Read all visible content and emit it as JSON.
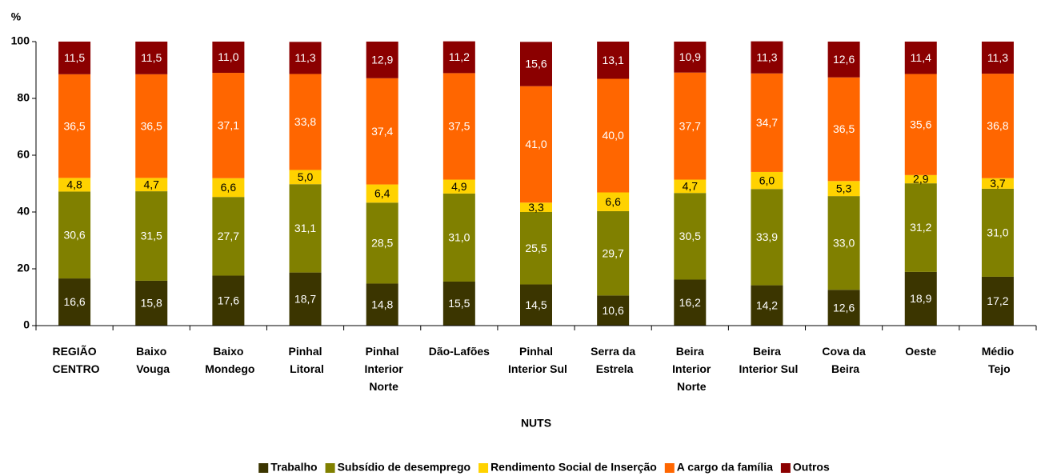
{
  "chart_data": {
    "type": "stacked_bar",
    "y_axis_label": "%",
    "x_axis_label": "NUTS",
    "categories": [
      "REGIÃO\nCENTRO",
      "Baixo\nVouga",
      "Baixo\nMondego",
      "Pinhal\nLitoral",
      "Pinhal\nInterior\nNorte",
      "Dão-Lafões",
      "Pinhal\nInterior Sul",
      "Serra da\nEstrela",
      "Beira\nInterior\nNorte",
      "Beira\nInterior Sul",
      "Cova da\nBeira",
      "Oeste",
      "Médio\nTejo"
    ],
    "series": [
      {
        "name": "Trabalho",
        "color": "#3b3500",
        "label_color": "#ffffff",
        "values": [
          16.6,
          15.8,
          17.6,
          18.7,
          14.8,
          15.5,
          14.5,
          10.6,
          16.2,
          14.2,
          12.6,
          18.9,
          17.2
        ],
        "value_labels": [
          "16,6",
          "15,8",
          "17,6",
          "18,7",
          "14,8",
          "15,5",
          "14,5",
          "10,6",
          "16,2",
          "14,2",
          "12,6",
          "18,9",
          "17,2"
        ]
      },
      {
        "name": "Subsídio de desemprego",
        "color": "#808000",
        "label_color": "#ffffff",
        "values": [
          30.6,
          31.5,
          27.7,
          31.1,
          28.5,
          31.0,
          25.5,
          29.7,
          30.5,
          33.9,
          33.0,
          31.2,
          31.0
        ],
        "value_labels": [
          "30,6",
          "31,5",
          "27,7",
          "31,1",
          "28,5",
          "31,0",
          "25,5",
          "29,7",
          "30,5",
          "33,9",
          "33,0",
          "31,2",
          "31,0"
        ]
      },
      {
        "name": "Rendimento Social de Inserção",
        "color": "#ffd200",
        "label_color": "#000000",
        "values": [
          4.8,
          4.7,
          6.6,
          5.0,
          6.4,
          4.9,
          3.3,
          6.6,
          4.7,
          6.0,
          5.3,
          2.9,
          3.7
        ],
        "value_labels": [
          "4,8",
          "4,7",
          "6,6",
          "5,0",
          "6,4",
          "4,9",
          "3,3",
          "6,6",
          "4,7",
          "6,0",
          "5,3",
          "2,9",
          "3,7"
        ]
      },
      {
        "name": "A cargo da família",
        "color": "#ff6600",
        "label_color": "#ffffff",
        "values": [
          36.5,
          36.5,
          37.1,
          33.8,
          37.4,
          37.5,
          41.0,
          40.0,
          37.7,
          34.7,
          36.5,
          35.6,
          36.8
        ],
        "value_labels": [
          "36,5",
          "36,5",
          "37,1",
          "33,8",
          "37,4",
          "37,5",
          "41,0",
          "40,0",
          "37,7",
          "34,7",
          "36,5",
          "35,6",
          "36,8"
        ]
      },
      {
        "name": "Outros",
        "color": "#8b0000",
        "label_color": "#ffffff",
        "values": [
          11.5,
          11.5,
          11.0,
          11.3,
          12.9,
          11.2,
          15.6,
          13.1,
          10.9,
          11.3,
          12.6,
          11.4,
          11.3
        ],
        "value_labels": [
          "11,5",
          "11,5",
          "11,0",
          "11,3",
          "12,9",
          "11,2",
          "15,6",
          "13,1",
          "10,9",
          "11,3",
          "12,6",
          "11,4",
          "11,3"
        ]
      }
    ],
    "ylim": [
      0,
      100
    ],
    "yticks": [
      0,
      20,
      40,
      60,
      80,
      100
    ],
    "grid": false,
    "legend": "bottom"
  }
}
